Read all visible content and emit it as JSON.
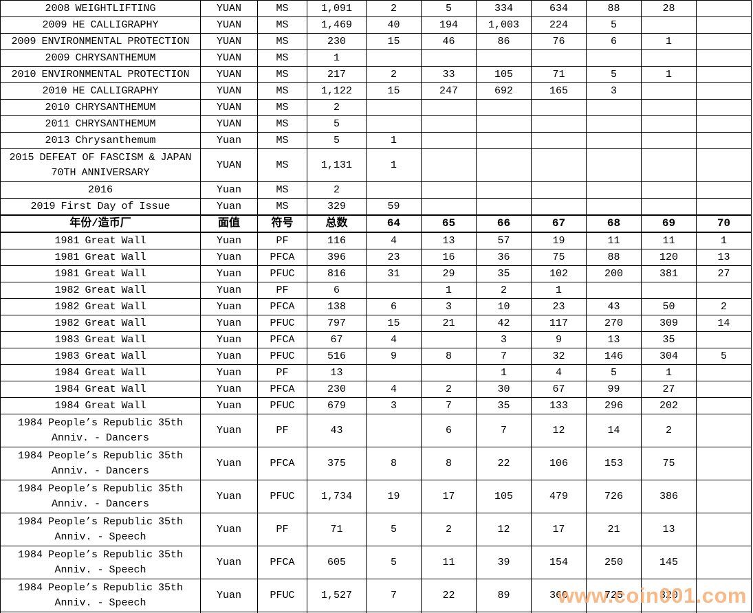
{
  "header": {
    "name": "年份/造币厂",
    "denomination": "面值",
    "designation": "符号",
    "total": "总数",
    "grades": [
      "64",
      "65",
      "66",
      "67",
      "68",
      "69",
      "70"
    ]
  },
  "ms_rows": [
    {
      "name": "2008 WEIGHTLIFTING",
      "denomination": "YUAN",
      "designation": "MS",
      "total": "1,091",
      "grades": [
        "2",
        "5",
        "334",
        "634",
        "88",
        "28",
        ""
      ]
    },
    {
      "name": "2009 HE CALLIGRAPHY",
      "denomination": "YUAN",
      "designation": "MS",
      "total": "1,469",
      "grades": [
        "40",
        "194",
        "1,003",
        "224",
        "5",
        "",
        ""
      ]
    },
    {
      "name": "2009 ENVIRONMENTAL PROTECTION",
      "denomination": "YUAN",
      "designation": "MS",
      "total": "230",
      "grades": [
        "15",
        "46",
        "86",
        "76",
        "6",
        "1",
        ""
      ]
    },
    {
      "name": "2009 CHRYSANTHEMUM",
      "denomination": "YUAN",
      "designation": "MS",
      "total": "1",
      "grades": [
        "",
        "",
        "",
        "",
        "",
        "",
        ""
      ]
    },
    {
      "name": "2010 ENVIRONMENTAL PROTECTION",
      "denomination": "YUAN",
      "designation": "MS",
      "total": "217",
      "grades": [
        "2",
        "33",
        "105",
        "71",
        "5",
        "1",
        ""
      ]
    },
    {
      "name": "2010 HE CALLIGRAPHY",
      "denomination": "YUAN",
      "designation": "MS",
      "total": "1,122",
      "grades": [
        "15",
        "247",
        "692",
        "165",
        "3",
        "",
        ""
      ]
    },
    {
      "name": "2010 CHRYSANTHEMUM",
      "denomination": "YUAN",
      "designation": "MS",
      "total": "2",
      "grades": [
        "",
        "",
        "",
        "",
        "",
        "",
        ""
      ]
    },
    {
      "name": "2011 CHRYSANTHEMUM",
      "denomination": "YUAN",
      "designation": "MS",
      "total": "5",
      "grades": [
        "",
        "",
        "",
        "",
        "",
        "",
        ""
      ]
    },
    {
      "name": "2013 Chrysanthemum",
      "denomination": "Yuan",
      "designation": "MS",
      "total": "5",
      "grades": [
        "1",
        "",
        "",
        "",
        "",
        "",
        ""
      ]
    },
    {
      "name": "2015 DEFEAT OF FASCISM & JAPAN 70TH ANNIVERSARY",
      "denomination": "YUAN",
      "designation": "MS",
      "total": "1,131",
      "grades": [
        "1",
        "",
        "",
        "",
        "",
        "",
        ""
      ]
    },
    {
      "name": "2016",
      "denomination": "Yuan",
      "designation": "MS",
      "total": "2",
      "grades": [
        "",
        "",
        "",
        "",
        "",
        "",
        ""
      ]
    },
    {
      "name": "2019 First Day of Issue",
      "denomination": "Yuan",
      "designation": "MS",
      "total": "329",
      "grades": [
        "59",
        "",
        "",
        "",
        "",
        "",
        ""
      ]
    }
  ],
  "pf_rows": [
    {
      "name": "1981 Great Wall",
      "denomination": "Yuan",
      "designation": "PF",
      "total": "116",
      "grades": [
        "4",
        "13",
        "57",
        "19",
        "11",
        "11",
        "1"
      ]
    },
    {
      "name": "1981 Great Wall",
      "denomination": "Yuan",
      "designation": "PFCA",
      "total": "396",
      "grades": [
        "23",
        "16",
        "36",
        "75",
        "88",
        "120",
        "13"
      ]
    },
    {
      "name": "1981 Great Wall",
      "denomination": "Yuan",
      "designation": "PFUC",
      "total": "816",
      "grades": [
        "31",
        "29",
        "35",
        "102",
        "200",
        "381",
        "27"
      ]
    },
    {
      "name": "1982 Great Wall",
      "denomination": "Yuan",
      "designation": "PF",
      "total": "6",
      "grades": [
        "",
        "1",
        "2",
        "1",
        "",
        "",
        ""
      ]
    },
    {
      "name": "1982 Great Wall",
      "denomination": "Yuan",
      "designation": "PFCA",
      "total": "138",
      "grades": [
        "6",
        "3",
        "10",
        "23",
        "43",
        "50",
        "2"
      ]
    },
    {
      "name": "1982 Great Wall",
      "denomination": "Yuan",
      "designation": "PFUC",
      "total": "797",
      "grades": [
        "15",
        "21",
        "42",
        "117",
        "270",
        "309",
        "14"
      ]
    },
    {
      "name": "1983 Great Wall",
      "denomination": "Yuan",
      "designation": "PFCA",
      "total": "67",
      "grades": [
        "4",
        "",
        "3",
        "9",
        "13",
        "35",
        ""
      ]
    },
    {
      "name": "1983 Great Wall",
      "denomination": "Yuan",
      "designation": "PFUC",
      "total": "516",
      "grades": [
        "9",
        "8",
        "7",
        "32",
        "146",
        "304",
        "5"
      ]
    },
    {
      "name": "1984 Great Wall",
      "denomination": "Yuan",
      "designation": "PF",
      "total": "13",
      "grades": [
        "",
        "",
        "1",
        "4",
        "5",
        "1",
        ""
      ]
    },
    {
      "name": "1984 Great Wall",
      "denomination": "Yuan",
      "designation": "PFCA",
      "total": "230",
      "grades": [
        "4",
        "2",
        "30",
        "67",
        "99",
        "27",
        ""
      ]
    },
    {
      "name": "1984 Great Wall",
      "denomination": "Yuan",
      "designation": "PFUC",
      "total": "679",
      "grades": [
        "3",
        "7",
        "35",
        "133",
        "296",
        "202",
        ""
      ]
    },
    {
      "name": "1984 People’s Republic 35th Anniv. - Dancers",
      "denomination": "Yuan",
      "designation": "PF",
      "total": "43",
      "grades": [
        "",
        "6",
        "7",
        "12",
        "14",
        "2",
        ""
      ]
    },
    {
      "name": "1984 People’s Republic 35th Anniv. - Dancers",
      "denomination": "Yuan",
      "designation": "PFCA",
      "total": "375",
      "grades": [
        "8",
        "8",
        "22",
        "106",
        "153",
        "75",
        ""
      ]
    },
    {
      "name": "1984 People’s Republic 35th Anniv. - Dancers",
      "denomination": "Yuan",
      "designation": "PFUC",
      "total": "1,734",
      "grades": [
        "19",
        "17",
        "105",
        "479",
        "726",
        "386",
        ""
      ]
    },
    {
      "name": "1984 People’s Republic 35th Anniv. - Speech",
      "denomination": "Yuan",
      "designation": "PF",
      "total": "71",
      "grades": [
        "5",
        "2",
        "12",
        "17",
        "21",
        "13",
        ""
      ]
    },
    {
      "name": "1984 People’s Republic 35th Anniv. - Speech",
      "denomination": "Yuan",
      "designation": "PFCA",
      "total": "605",
      "grades": [
        "5",
        "11",
        "39",
        "154",
        "250",
        "145",
        ""
      ]
    },
    {
      "name": "1984 People’s Republic 35th Anniv. - Speech",
      "denomination": "Yuan",
      "designation": "PFUC",
      "total": "1,527",
      "grades": [
        "7",
        "22",
        "89",
        "360",
        "725",
        "320",
        ""
      ]
    }
  ],
  "watermark": {
    "text": "www.coin001.com",
    "color": "#f9ad72"
  }
}
